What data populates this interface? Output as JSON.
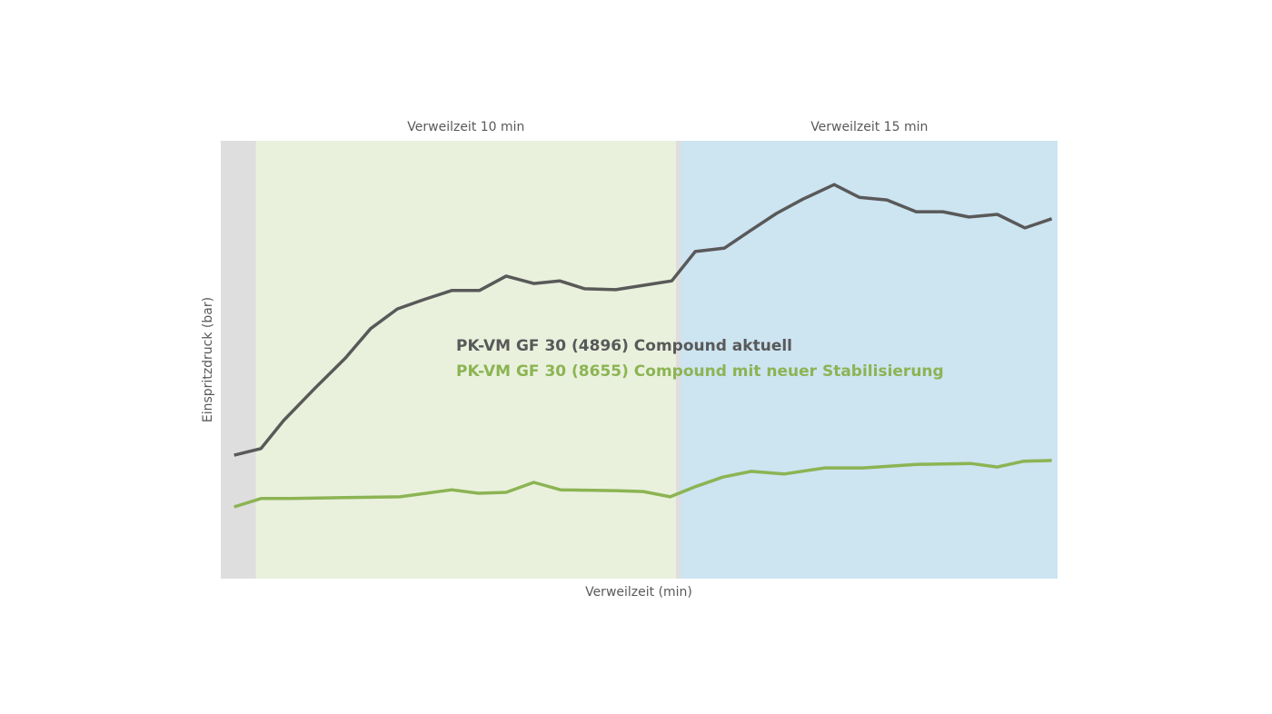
{
  "chart_data": {
    "type": "line",
    "x_label": "Verweilzeit (min)",
    "y_label": "Einspritzdruck (bar)",
    "xlim": [
      0,
      100
    ],
    "ylim": [
      0,
      100
    ],
    "background": "#dedede",
    "bands": [
      {
        "label": "Verweilzeit 10 min",
        "from": 4.2,
        "to": 54.4,
        "color": "#e9f1dd"
      },
      {
        "label": "Verweilzeit 15 min",
        "from": 55.0,
        "to": 100,
        "color": "#cde4f1"
      }
    ],
    "legend": "center",
    "series": [
      {
        "name": "PK-VM GF 30 (4896) Compound aktuell",
        "color": "#595959",
        "x": [
          1.6,
          4.8,
          7.5,
          11.2,
          14.9,
          17.9,
          21.1,
          24.2,
          27.6,
          30.9,
          34.1,
          37.4,
          40.5,
          43.5,
          47.2,
          50.5,
          53.9,
          56.7,
          60.2,
          63.3,
          66.4,
          69.6,
          73.3,
          76.3,
          79.6,
          83.1,
          86.3,
          89.4,
          92.8,
          96.1,
          99.3
        ],
        "values": [
          28.2,
          29.7,
          36.1,
          43.4,
          50.4,
          57.1,
          61.6,
          63.7,
          65.8,
          65.8,
          69.1,
          67.4,
          68.0,
          66.2,
          66.0,
          67.0,
          68.0,
          74.7,
          75.5,
          79.5,
          83.4,
          86.7,
          90.0,
          87.1,
          86.5,
          83.8,
          83.8,
          82.6,
          83.2,
          80.1,
          82.2
        ]
      },
      {
        "name": "PK-VM GF 30 (8655) Compound mit neuer Stabilisierung",
        "color": "#8cb453",
        "x": [
          1.6,
          4.8,
          8.4,
          14.9,
          21.4,
          27.6,
          30.8,
          34.1,
          37.4,
          40.6,
          47.1,
          50.5,
          53.7,
          56.7,
          60.0,
          63.4,
          67.3,
          72.2,
          76.8,
          83.1,
          89.6,
          92.8,
          95.9,
          99.3
        ],
        "values": [
          16.4,
          18.3,
          18.3,
          18.5,
          18.7,
          20.3,
          19.5,
          19.7,
          22.0,
          20.3,
          20.1,
          19.9,
          18.7,
          21.0,
          23.2,
          24.5,
          23.9,
          25.3,
          25.3,
          26.1,
          26.3,
          25.5,
          26.8,
          27.0
        ]
      }
    ]
  }
}
